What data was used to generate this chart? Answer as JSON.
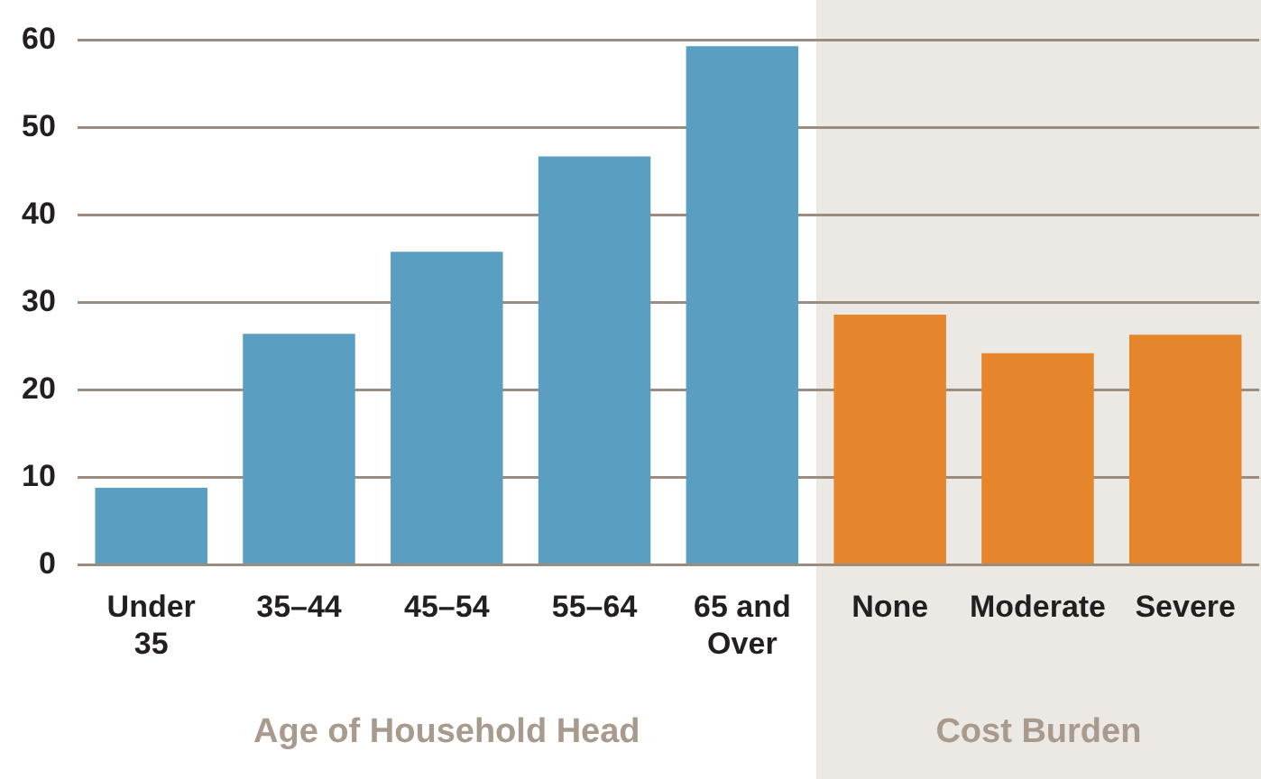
{
  "chart_data": {
    "type": "bar",
    "categories": [
      "Under 35",
      "35–44",
      "45–54",
      "55–64",
      "65 and Over",
      "None",
      "Moderate",
      "Severe"
    ],
    "values": [
      8.8,
      26.4,
      35.8,
      46.7,
      59.3,
      28.6,
      24.2,
      26.3
    ],
    "colors": [
      "#5a9fc2",
      "#5a9fc2",
      "#5a9fc2",
      "#5a9fc2",
      "#5a9fc2",
      "#e6862c",
      "#e6862c",
      "#e6862c"
    ],
    "ylim": [
      0,
      60
    ],
    "yticks": [
      0,
      10,
      20,
      30,
      40,
      50,
      60
    ],
    "grid": "y",
    "legend": false,
    "bands": [
      {
        "axis": "x",
        "from": "None",
        "to": "Severe",
        "label": "Cost Burden",
        "color": "#ece8e3"
      }
    ],
    "annotations": [
      "Age of Household Head"
    ]
  }
}
